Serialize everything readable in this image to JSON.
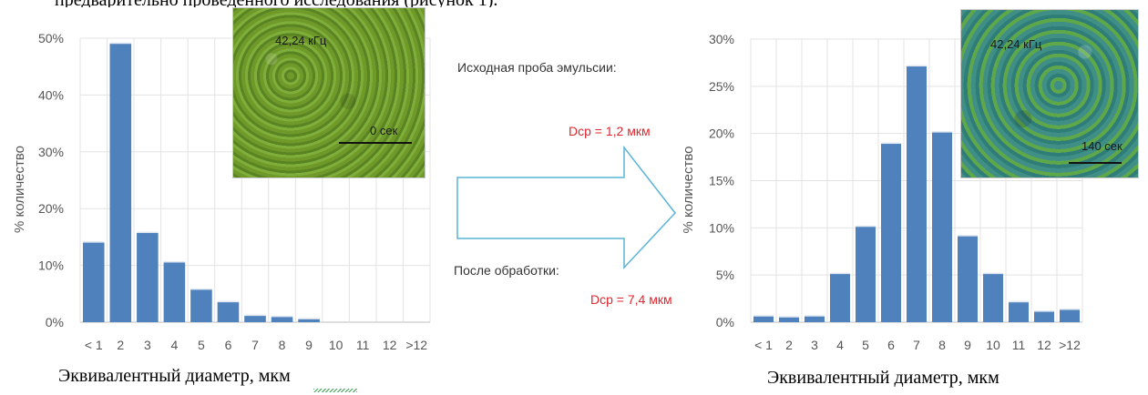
{
  "header_fragment": "предварительно проведенного исследования (рисунок 1).",
  "chart_data": [
    {
      "type": "bar",
      "ylabel": "% количество",
      "xlabel": "Эквивалентный диаметр, мкм",
      "ylim": [
        0,
        50
      ],
      "yticks": [
        0,
        10,
        20,
        30,
        40,
        50
      ],
      "ytick_labels": [
        "0%",
        "10%",
        "20%",
        "30%",
        "40%",
        "50%"
      ],
      "grid": true,
      "categories": [
        "< 1",
        "2",
        "3",
        "4",
        "5",
        "6",
        "7",
        "8",
        "9",
        "10",
        "11",
        "12",
        ">12"
      ],
      "values": [
        14,
        49,
        15.7,
        10.5,
        5.7,
        3.5,
        1.1,
        0.9,
        0.5,
        0,
        0,
        0,
        0
      ],
      "bar_color": "#4f81bd",
      "inset": {
        "frequency_label": "42,24 кГц",
        "time_label": "0 сек"
      }
    },
    {
      "type": "bar",
      "ylabel": "% количество",
      "xlabel": "Эквивалентный диаметр, мкм",
      "ylim": [
        0,
        30
      ],
      "yticks": [
        0,
        5,
        10,
        15,
        20,
        25,
        30
      ],
      "ytick_labels": [
        "0%",
        "5%",
        "10%",
        "15%",
        "20%",
        "25%",
        "30%"
      ],
      "grid": true,
      "categories": [
        "< 1",
        "2",
        "3",
        "4",
        "5",
        "6",
        "7",
        "8",
        "9",
        "10",
        "11",
        "12",
        ">12"
      ],
      "values": [
        0.6,
        0.5,
        0.6,
        5.1,
        10.1,
        18.9,
        27.1,
        20.1,
        9.1,
        5.1,
        2.1,
        1.1,
        1.3
      ],
      "bar_color": "#4f81bd",
      "inset": {
        "frequency_label": "42,24 кГц",
        "time_label": "140 сек"
      }
    }
  ],
  "middle": {
    "initial_label": "Исходная проба эмульсии:",
    "initial_dcp": "Dcp = 1,2 мкм",
    "after_label": "После обработки:",
    "after_dcp": "Dcp = 7,4 мкм",
    "accent_color": "#e0262e",
    "arrow_color": "#5ab4d6"
  }
}
